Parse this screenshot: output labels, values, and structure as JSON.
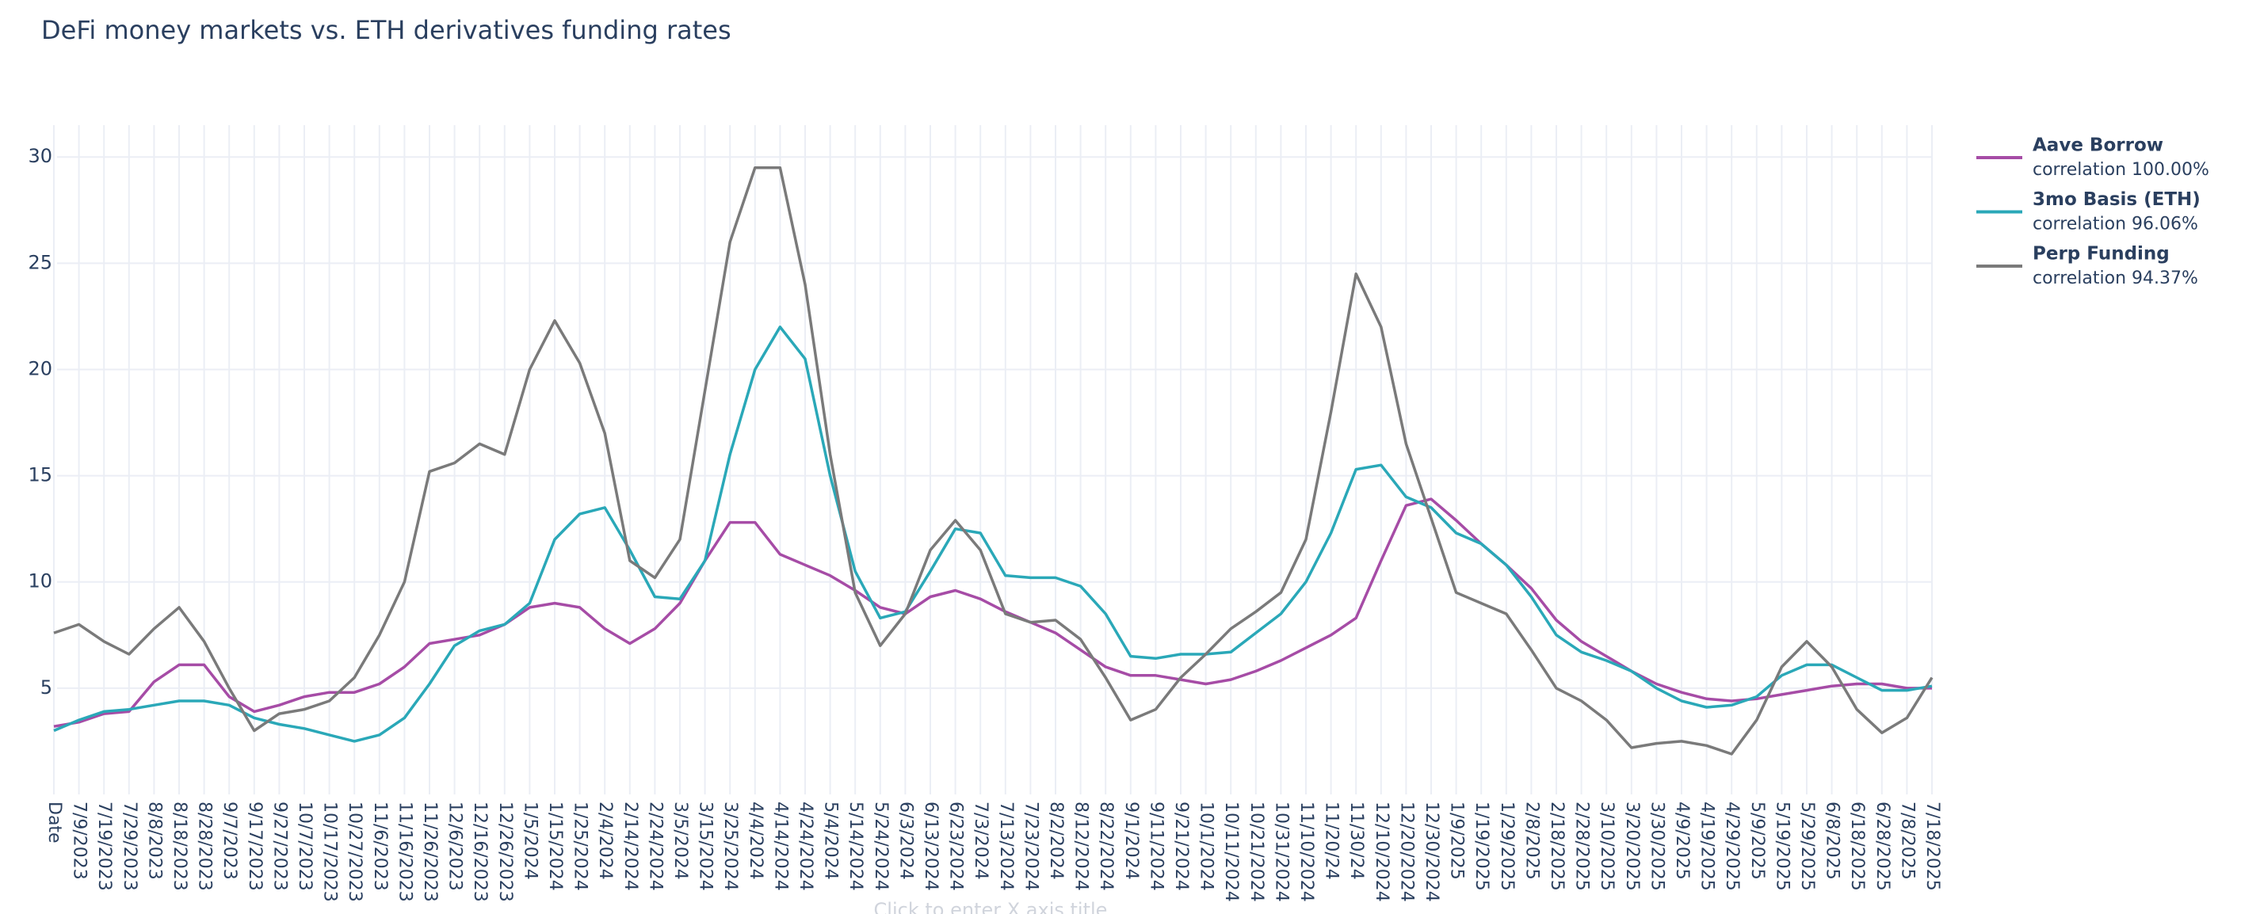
{
  "chart_data": {
    "type": "line",
    "title": "DeFi money markets vs. ETH derivatives funding rates",
    "x_label": "Click to enter X axis title",
    "categories": [
      "Date",
      "7/9/2023",
      "7/19/2023",
      "7/29/2023",
      "8/8/2023",
      "8/18/2023",
      "8/28/2023",
      "9/7/2023",
      "9/17/2023",
      "9/27/2023",
      "10/7/2023",
      "10/17/2023",
      "10/27/2023",
      "11/6/2023",
      "11/16/2023",
      "11/26/2023",
      "12/6/2023",
      "12/16/2023",
      "12/26/2023",
      "1/5/2024",
      "1/15/2024",
      "1/25/2024",
      "2/4/2024",
      "2/14/2024",
      "2/24/2024",
      "3/5/2024",
      "3/15/2024",
      "3/25/2024",
      "4/4/2024",
      "4/14/2024",
      "4/24/2024",
      "5/4/2024",
      "5/14/2024",
      "5/24/2024",
      "6/3/2024",
      "6/13/2024",
      "6/23/2024",
      "7/3/2024",
      "7/13/2024",
      "7/23/2024",
      "8/2/2024",
      "8/12/2024",
      "8/22/2024",
      "9/1/2024",
      "9/11/2024",
      "9/21/2024",
      "10/1/2024",
      "10/11/2024",
      "10/21/2024",
      "10/31/2024",
      "11/10/2024",
      "11/20/24",
      "11/30/24",
      "12/10/2024",
      "12/20/2024",
      "12/30/2024",
      "1/9/2025",
      "1/19/2025",
      "1/29/2025",
      "2/8/2025",
      "2/18/2025",
      "2/28/2025",
      "3/10/2025",
      "3/20/2025",
      "3/30/2025",
      "4/9/2025",
      "4/19/2025",
      "4/29/2025",
      "5/9/2025",
      "5/19/2025",
      "5/29/2025",
      "6/8/2025",
      "6/18/2025",
      "6/28/2025",
      "7/8/2025",
      "7/18/2025"
    ],
    "series": [
      {
        "name": "Aave Borrow",
        "note": "correlation 100.00%",
        "color": "#a64ca6",
        "values": [
          3.2,
          3.4,
          3.8,
          3.9,
          5.3,
          6.1,
          6.1,
          4.6,
          3.9,
          4.2,
          4.6,
          4.8,
          4.8,
          5.2,
          6.0,
          7.1,
          7.3,
          7.5,
          8.0,
          8.8,
          9.0,
          8.8,
          7.8,
          7.1,
          7.8,
          9.0,
          11.0,
          12.8,
          12.8,
          11.3,
          10.8,
          10.3,
          9.6,
          8.8,
          8.5,
          9.3,
          9.6,
          9.2,
          8.6,
          8.1,
          7.6,
          6.8,
          6.0,
          5.6,
          5.6,
          5.4,
          5.2,
          5.4,
          5.8,
          6.3,
          6.9,
          7.5,
          8.3,
          11.0,
          13.6,
          13.9,
          12.9,
          11.8,
          10.8,
          9.7,
          8.2,
          7.2,
          6.5,
          5.8,
          5.2,
          4.8,
          4.5,
          4.4,
          4.5,
          4.7,
          4.9,
          5.1,
          5.2,
          5.2,
          5.0,
          5.0
        ]
      },
      {
        "name": "3mo Basis (ETH)",
        "note": "correlation 96.06%",
        "color": "#2aa8b8",
        "values": [
          3.0,
          3.5,
          3.9,
          4.0,
          4.2,
          4.4,
          4.4,
          4.2,
          3.6,
          3.3,
          3.1,
          2.8,
          2.5,
          2.8,
          3.6,
          5.2,
          7.0,
          7.7,
          8.0,
          9.0,
          12.0,
          13.2,
          13.5,
          11.5,
          9.3,
          9.2,
          11.0,
          16.0,
          20.0,
          22.0,
          20.5,
          15.0,
          10.5,
          8.3,
          8.6,
          10.5,
          12.5,
          12.3,
          10.3,
          10.2,
          10.2,
          9.8,
          8.5,
          6.5,
          6.4,
          6.6,
          6.6,
          6.7,
          7.6,
          8.5,
          10.0,
          12.3,
          15.3,
          15.5,
          14.0,
          13.5,
          12.3,
          11.8,
          10.8,
          9.3,
          7.5,
          6.7,
          6.3,
          5.8,
          5.0,
          4.4,
          4.1,
          4.2,
          4.6,
          5.6,
          6.1,
          6.1,
          5.5,
          4.9,
          4.9,
          5.1
        ]
      },
      {
        "name": "Perp Funding",
        "note": "correlation 94.37%",
        "color": "#7a7a7a",
        "values": [
          7.6,
          8.0,
          7.2,
          6.6,
          7.8,
          8.8,
          7.2,
          5.0,
          3.0,
          3.8,
          4.0,
          4.4,
          5.5,
          7.5,
          10.0,
          15.2,
          15.6,
          16.5,
          16.0,
          20.0,
          22.3,
          20.3,
          17.0,
          11.0,
          10.2,
          12.0,
          19.0,
          26.0,
          29.5,
          29.5,
          24.0,
          16.0,
          9.5,
          7.0,
          8.5,
          11.5,
          12.9,
          11.5,
          8.5,
          8.1,
          8.2,
          7.3,
          5.5,
          3.5,
          4.0,
          5.5,
          6.6,
          7.8,
          8.6,
          9.5,
          12.0,
          18.0,
          24.5,
          22.0,
          16.5,
          13.0,
          9.5,
          9.0,
          8.5,
          6.8,
          5.0,
          4.4,
          3.5,
          2.2,
          2.4,
          2.5,
          2.3,
          1.9,
          3.5,
          6.0,
          7.2,
          6.0,
          4.0,
          2.9,
          3.6,
          5.5
        ]
      }
    ],
    "ylim": [
      0,
      31.5
    ],
    "yticks": [
      5,
      10,
      15,
      20,
      25,
      30
    ],
    "grid": true
  }
}
